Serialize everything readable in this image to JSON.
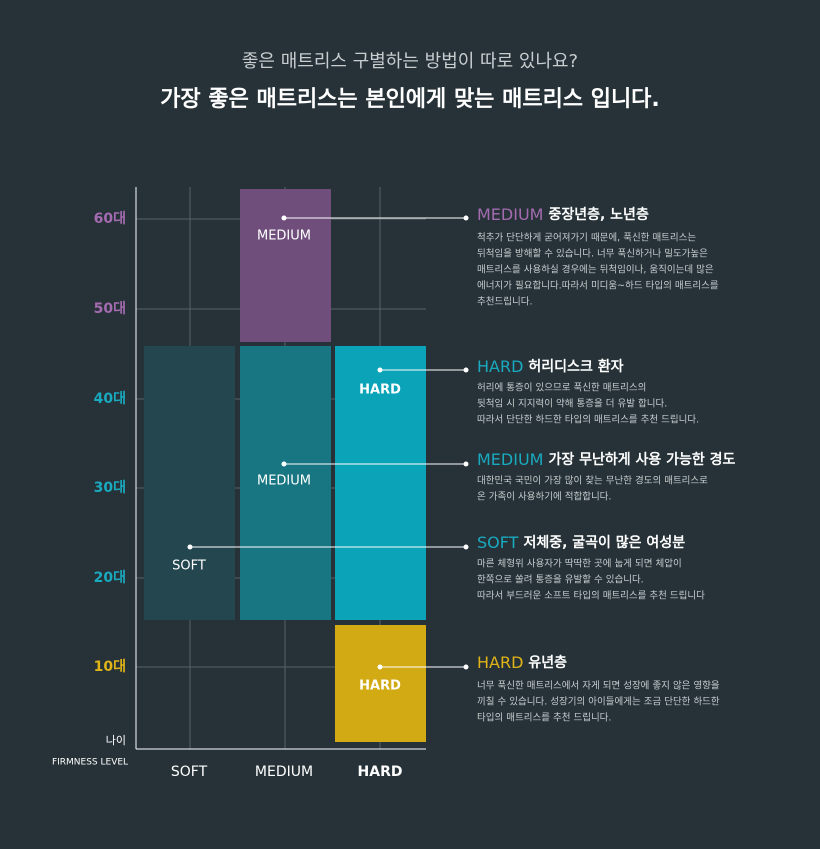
{
  "header": {
    "subtitle": "좋은 매트리스 구별하는 방법이 따로 있나요?",
    "title": "가장 좋은 매트리스는 본인에게 맞는 매트리스 입니다."
  },
  "axis": {
    "age_labels": [
      "60대",
      "50대",
      "40대",
      "30대",
      "20대",
      "10대"
    ],
    "age_title": "나이",
    "firmness_title": "FIRMNESS LEVEL",
    "firmness_labels": [
      "SOFT",
      "MEDIUM",
      "HARD"
    ]
  },
  "blocks": [
    {
      "label": "MEDIUM"
    },
    {
      "label": "SOFT"
    },
    {
      "label": "MEDIUM"
    },
    {
      "label": "HARD"
    },
    {
      "label": "HARD"
    }
  ],
  "notes": [
    {
      "keyword": "MEDIUM",
      "heading": "중장년층, 노년층",
      "lines": [
        "척추가 단단하게 굳어져가기 때문에, 푹신한 매트리스는",
        "뒤척임을 방해할 수 있습니다. 너무 푹신하거나 밀도가높은",
        "매트리스를 사용하실 경우에는 뒤척임이나, 움직이는데 많은",
        "에너지가 필요합니다.따라서 미디움~하드 타입의 매트리스를",
        "추천드립니다."
      ]
    },
    {
      "keyword": "HARD",
      "heading": "허리디스크 환자",
      "lines": [
        "허리에 통증이 있으므로 푹신한 매트리스의",
        "뒷척임 시 지지력이 약해 통증을 더 유발 합니다.",
        "따라서 단단한 하드한 타입의 매트리스를 추천 드립니다."
      ]
    },
    {
      "keyword": "MEDIUM",
      "heading": "가장 무난하게 사용 가능한 경도",
      "lines": [
        "대한민국 국민이 가장 많이 찾는 무난한 경도의 매트리스로",
        "온 가족이 사용하기에 적합합니다."
      ]
    },
    {
      "keyword": "SOFT",
      "heading": "저체중, 굴곡이 많은 여성분",
      "lines": [
        "마른 체형위 사용자가 딱딱한 곳에 눕게 되면 체압이",
        "한쪽으로 쏠려 통증을 유발할 수 있습니다.",
        "따라서 부드러운 소프트 타입의 매트리스를 추천 드립니다"
      ]
    },
    {
      "keyword": "HARD",
      "heading": "유년층",
      "lines": [
        "너무 푹신한 매트리스에서 자게 되면 성장에 좋지 않은 영향을",
        "끼칠 수 있습니다. 성장기의 아이들에게는 조금 단단한 하드한",
        "타입의 매트리스를 추천 드립니다."
      ]
    }
  ]
}
